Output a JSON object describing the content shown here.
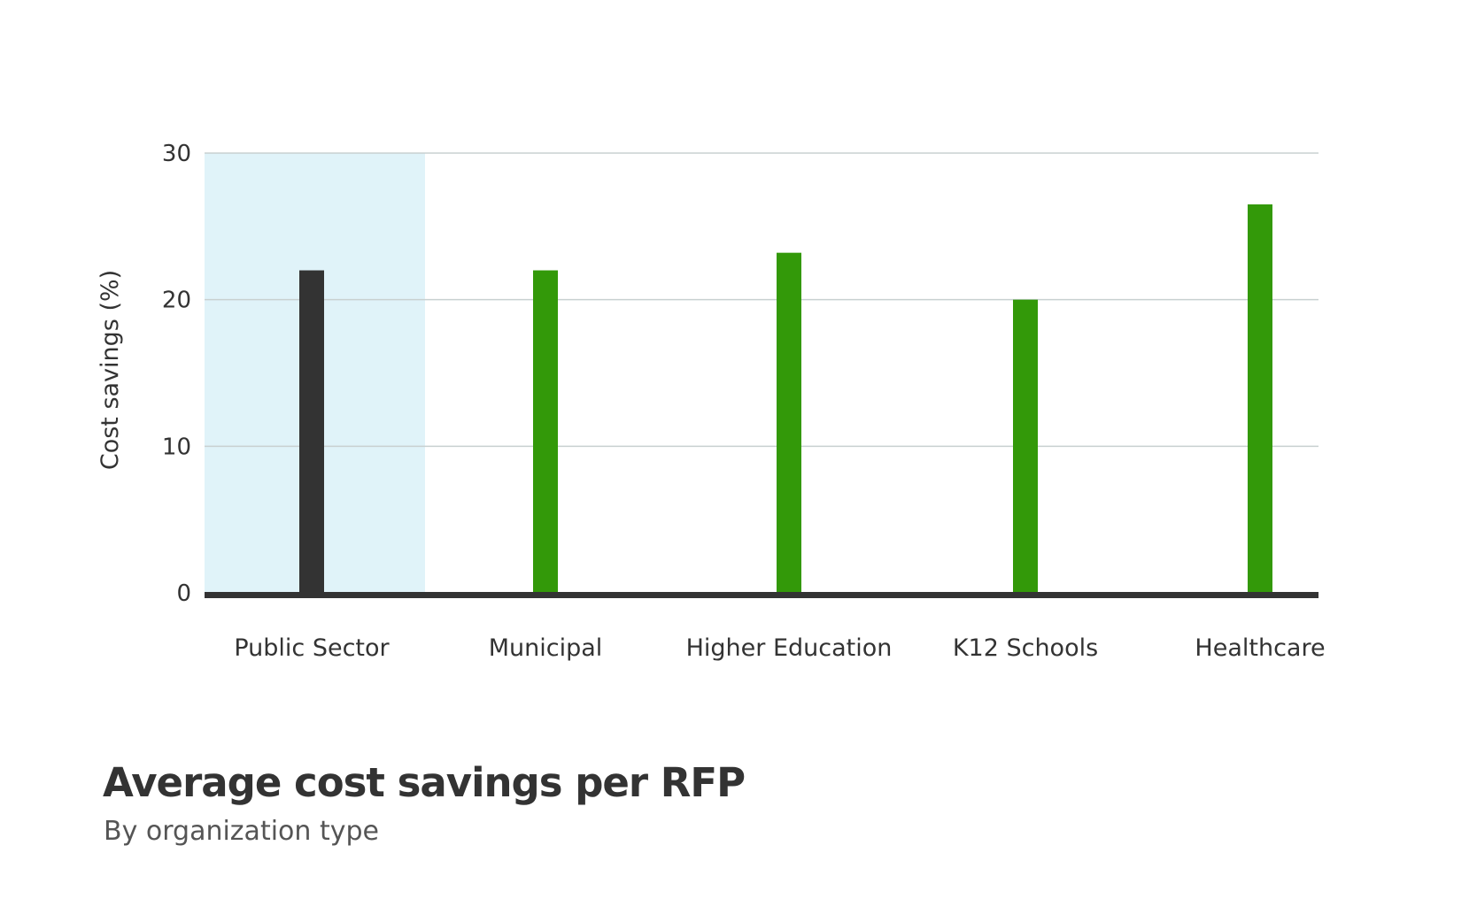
{
  "chart_data": {
    "type": "bar",
    "title": "Average cost savings per RFP",
    "subtitle": "By organization type",
    "xlabel": "",
    "ylabel": "Cost savings (%)",
    "ylim": [
      0,
      30
    ],
    "yticks": [
      0,
      10,
      20,
      30
    ],
    "grid": true,
    "categories": [
      "Public Sector",
      "Municipal",
      "Higher Education",
      "K12 Schools",
      "Healthcare"
    ],
    "values": [
      22,
      22,
      23.2,
      20,
      26.5
    ],
    "highlighted_category": "Public Sector",
    "colors": {
      "highlight_bar": "#333333",
      "bar": "#339909",
      "highlight_band": "#e0f3f9",
      "grid": "#c8d0d0",
      "axis": "#333333"
    }
  }
}
